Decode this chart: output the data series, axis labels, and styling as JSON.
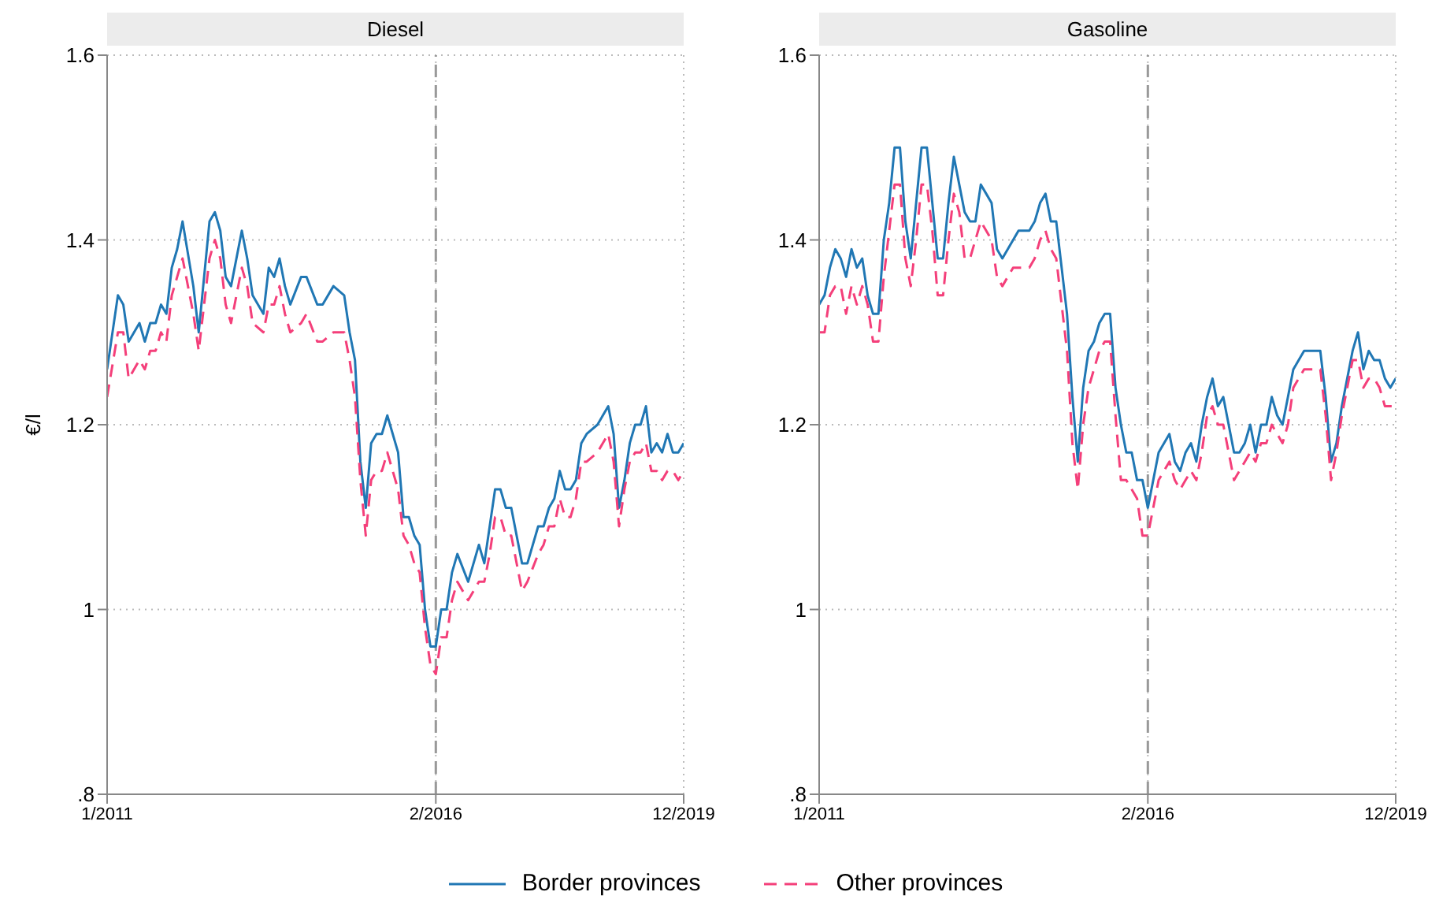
{
  "chart_data": [
    {
      "type": "line",
      "title": "Diesel",
      "ylabel": "€/l",
      "legend": "bottom",
      "grid": true,
      "ylim": [
        0.8,
        1.6
      ],
      "yticks": [
        {
          "value": 0.8,
          "label": ".8"
        },
        1,
        1.2,
        1.4,
        1.6
      ],
      "xlim": [
        "2011-01",
        "2019-12"
      ],
      "xticks": [
        {
          "value": "2011-01",
          "label": "1/2011"
        },
        {
          "value": "2016-02",
          "label": "2/2016"
        },
        {
          "value": "2019-12",
          "label": "12/2019"
        }
      ],
      "ref_lines": [
        {
          "axis": "x",
          "value": "2016-02",
          "color": "#999999",
          "line_style": "dashed"
        }
      ],
      "x": [
        "2011-01",
        "2011-03",
        "2011-04",
        "2011-05",
        "2011-07",
        "2011-08",
        "2011-09",
        "2011-10",
        "2011-11",
        "2011-12",
        "2012-01",
        "2012-02",
        "2012-03",
        "2012-05",
        "2012-06",
        "2012-08",
        "2012-09",
        "2012-10",
        "2012-11",
        "2012-12",
        "2013-02",
        "2013-03",
        "2013-04",
        "2013-06",
        "2013-07",
        "2013-08",
        "2013-09",
        "2013-10",
        "2013-11",
        "2014-01",
        "2014-02",
        "2014-04",
        "2014-05",
        "2014-07",
        "2014-09",
        "2014-10",
        "2014-11",
        "2014-12",
        "2015-01",
        "2015-02",
        "2015-03",
        "2015-04",
        "2015-05",
        "2015-07",
        "2015-08",
        "2015-09",
        "2015-10",
        "2015-11",
        "2015-12",
        "2016-01",
        "2016-02",
        "2016-03",
        "2016-04",
        "2016-05",
        "2016-06",
        "2016-08",
        "2016-10",
        "2016-11",
        "2016-12",
        "2017-01",
        "2017-02",
        "2017-03",
        "2017-04",
        "2017-06",
        "2017-07",
        "2017-09",
        "2017-10",
        "2017-11",
        "2017-12",
        "2018-01",
        "2018-02",
        "2018-03",
        "2018-04",
        "2018-05",
        "2018-06",
        "2018-08",
        "2018-10",
        "2018-11",
        "2018-12",
        "2019-01",
        "2019-02",
        "2019-03",
        "2019-04",
        "2019-05",
        "2019-06",
        "2019-07",
        "2019-08",
        "2019-09",
        "2019-10",
        "2019-11",
        "2019-12"
      ],
      "series": [
        {
          "name": "Border provinces",
          "color": "#2077b4",
          "line_style": "solid",
          "values": [
            1.26,
            1.34,
            1.33,
            1.29,
            1.31,
            1.29,
            1.31,
            1.31,
            1.33,
            1.32,
            1.37,
            1.39,
            1.42,
            1.35,
            1.3,
            1.42,
            1.43,
            1.41,
            1.36,
            1.35,
            1.41,
            1.38,
            1.34,
            1.32,
            1.37,
            1.36,
            1.38,
            1.35,
            1.33,
            1.36,
            1.36,
            1.33,
            1.33,
            1.35,
            1.34,
            1.3,
            1.27,
            1.16,
            1.11,
            1.18,
            1.19,
            1.19,
            1.21,
            1.17,
            1.1,
            1.1,
            1.08,
            1.07,
            1.0,
            0.96,
            0.96,
            1.0,
            1.0,
            1.04,
            1.06,
            1.03,
            1.07,
            1.05,
            1.09,
            1.13,
            1.13,
            1.11,
            1.11,
            1.05,
            1.05,
            1.09,
            1.09,
            1.11,
            1.12,
            1.15,
            1.13,
            1.13,
            1.14,
            1.18,
            1.19,
            1.2,
            1.22,
            1.19,
            1.11,
            1.14,
            1.18,
            1.2,
            1.2,
            1.22,
            1.17,
            1.18,
            1.17,
            1.19,
            1.17,
            1.17,
            1.18
          ]
        },
        {
          "name": "Other provinces",
          "color": "#f43f7a",
          "line_style": "dashed",
          "values": [
            1.23,
            1.3,
            1.3,
            1.25,
            1.27,
            1.26,
            1.28,
            1.28,
            1.3,
            1.29,
            1.34,
            1.36,
            1.38,
            1.32,
            1.28,
            1.38,
            1.4,
            1.38,
            1.33,
            1.31,
            1.37,
            1.35,
            1.31,
            1.3,
            1.33,
            1.33,
            1.35,
            1.32,
            1.3,
            1.31,
            1.32,
            1.29,
            1.29,
            1.3,
            1.3,
            1.27,
            1.23,
            1.14,
            1.08,
            1.14,
            1.15,
            1.15,
            1.17,
            1.13,
            1.08,
            1.07,
            1.05,
            1.04,
            0.98,
            0.94,
            0.93,
            0.97,
            0.97,
            1.01,
            1.03,
            1.01,
            1.03,
            1.03,
            1.06,
            1.1,
            1.1,
            1.08,
            1.08,
            1.02,
            1.03,
            1.06,
            1.07,
            1.09,
            1.09,
            1.12,
            1.1,
            1.1,
            1.12,
            1.16,
            1.16,
            1.17,
            1.19,
            1.16,
            1.09,
            1.13,
            1.16,
            1.17,
            1.17,
            1.18,
            1.15,
            1.15,
            1.14,
            1.15,
            1.15,
            1.14,
            1.15
          ]
        }
      ]
    },
    {
      "type": "line",
      "title": "Gasoline",
      "grid": true,
      "ylim": [
        0.8,
        1.6
      ],
      "yticks": [
        {
          "value": 0.8,
          "label": ".8"
        },
        1,
        1.2,
        1.4,
        1.6
      ],
      "xlim": [
        "2011-01",
        "2019-12"
      ],
      "xticks": [
        {
          "value": "2011-01",
          "label": "1/2011"
        },
        {
          "value": "2016-02",
          "label": "2/2016"
        },
        {
          "value": "2019-12",
          "label": "12/2019"
        }
      ],
      "ref_lines": [
        {
          "axis": "x",
          "value": "2016-02",
          "color": "#999999",
          "line_style": "dashed"
        }
      ],
      "x": [
        "2011-01",
        "2011-02",
        "2011-03",
        "2011-04",
        "2011-05",
        "2011-06",
        "2011-07",
        "2011-08",
        "2011-09",
        "2011-10",
        "2011-11",
        "2011-12",
        "2012-01",
        "2012-02",
        "2012-03",
        "2012-04",
        "2012-05",
        "2012-06",
        "2012-07",
        "2012-08",
        "2012-09",
        "2012-10",
        "2012-11",
        "2012-12",
        "2013-01",
        "2013-02",
        "2013-03",
        "2013-04",
        "2013-05",
        "2013-06",
        "2013-07",
        "2013-08",
        "2013-09",
        "2013-10",
        "2013-11",
        "2013-12",
        "2014-01",
        "2014-02",
        "2014-03",
        "2014-04",
        "2014-05",
        "2014-06",
        "2014-07",
        "2014-08",
        "2014-09",
        "2014-10",
        "2014-11",
        "2014-12",
        "2015-01",
        "2015-02",
        "2015-03",
        "2015-04",
        "2015-05",
        "2015-06",
        "2015-07",
        "2015-08",
        "2015-09",
        "2015-10",
        "2015-11",
        "2015-12",
        "2016-01",
        "2016-02",
        "2016-03",
        "2016-04",
        "2016-05",
        "2016-06",
        "2016-07",
        "2016-08",
        "2016-09",
        "2016-10",
        "2016-11",
        "2016-12",
        "2017-01",
        "2017-02",
        "2017-03",
        "2017-04",
        "2017-05",
        "2017-06",
        "2017-07",
        "2017-08",
        "2017-09",
        "2017-10",
        "2017-11",
        "2017-12",
        "2018-01",
        "2018-02",
        "2018-03",
        "2018-04",
        "2018-05",
        "2018-06",
        "2018-07",
        "2018-08",
        "2018-09",
        "2018-10",
        "2018-11",
        "2018-12",
        "2019-01",
        "2019-02",
        "2019-03",
        "2019-04",
        "2019-05",
        "2019-06",
        "2019-07",
        "2019-08",
        "2019-09",
        "2019-10",
        "2019-11",
        "2019-12"
      ],
      "series": [
        {
          "name": "Border provinces",
          "color": "#2077b4",
          "line_style": "solid",
          "values": [
            1.33,
            1.34,
            1.37,
            1.39,
            1.38,
            1.36,
            1.39,
            1.37,
            1.38,
            1.34,
            1.32,
            1.32,
            1.4,
            1.44,
            1.5,
            1.5,
            1.42,
            1.38,
            1.44,
            1.5,
            1.5,
            1.44,
            1.38,
            1.38,
            1.44,
            1.49,
            1.46,
            1.43,
            1.42,
            1.42,
            1.46,
            1.45,
            1.44,
            1.39,
            1.38,
            1.39,
            1.4,
            1.41,
            1.41,
            1.41,
            1.42,
            1.44,
            1.45,
            1.42,
            1.42,
            1.37,
            1.32,
            1.23,
            1.16,
            1.24,
            1.28,
            1.29,
            1.31,
            1.32,
            1.32,
            1.24,
            1.2,
            1.17,
            1.17,
            1.14,
            1.14,
            1.11,
            1.14,
            1.17,
            1.18,
            1.19,
            1.16,
            1.15,
            1.17,
            1.18,
            1.16,
            1.2,
            1.23,
            1.25,
            1.22,
            1.23,
            1.2,
            1.17,
            1.17,
            1.18,
            1.2,
            1.17,
            1.2,
            1.2,
            1.23,
            1.21,
            1.2,
            1.23,
            1.26,
            1.27,
            1.28,
            1.28,
            1.28,
            1.28,
            1.23,
            1.16,
            1.18,
            1.22,
            1.25,
            1.28,
            1.3,
            1.26,
            1.28,
            1.27,
            1.27,
            1.25,
            1.24,
            1.25
          ]
        },
        {
          "name": "Other provinces",
          "color": "#f43f7a",
          "line_style": "dashed",
          "values": [
            1.3,
            1.3,
            1.34,
            1.35,
            1.35,
            1.32,
            1.35,
            1.33,
            1.35,
            1.33,
            1.29,
            1.29,
            1.36,
            1.41,
            1.46,
            1.46,
            1.38,
            1.35,
            1.4,
            1.46,
            1.46,
            1.41,
            1.34,
            1.34,
            1.4,
            1.45,
            1.43,
            1.38,
            1.38,
            1.4,
            1.42,
            1.41,
            1.4,
            1.36,
            1.35,
            1.36,
            1.37,
            1.37,
            1.37,
            1.37,
            1.38,
            1.4,
            1.41,
            1.39,
            1.38,
            1.33,
            1.28,
            1.18,
            1.13,
            1.2,
            1.24,
            1.26,
            1.28,
            1.29,
            1.29,
            1.21,
            1.14,
            1.14,
            1.13,
            1.12,
            1.08,
            1.08,
            1.11,
            1.14,
            1.15,
            1.16,
            1.14,
            1.13,
            1.14,
            1.15,
            1.14,
            1.17,
            1.21,
            1.22,
            1.2,
            1.2,
            1.17,
            1.14,
            1.15,
            1.16,
            1.17,
            1.16,
            1.18,
            1.18,
            1.2,
            1.19,
            1.18,
            1.2,
            1.24,
            1.25,
            1.26,
            1.26,
            1.26,
            1.26,
            1.21,
            1.14,
            1.17,
            1.21,
            1.24,
            1.27,
            1.27,
            1.24,
            1.25,
            1.25,
            1.24,
            1.22,
            1.22,
            1.22
          ]
        }
      ]
    }
  ]
}
